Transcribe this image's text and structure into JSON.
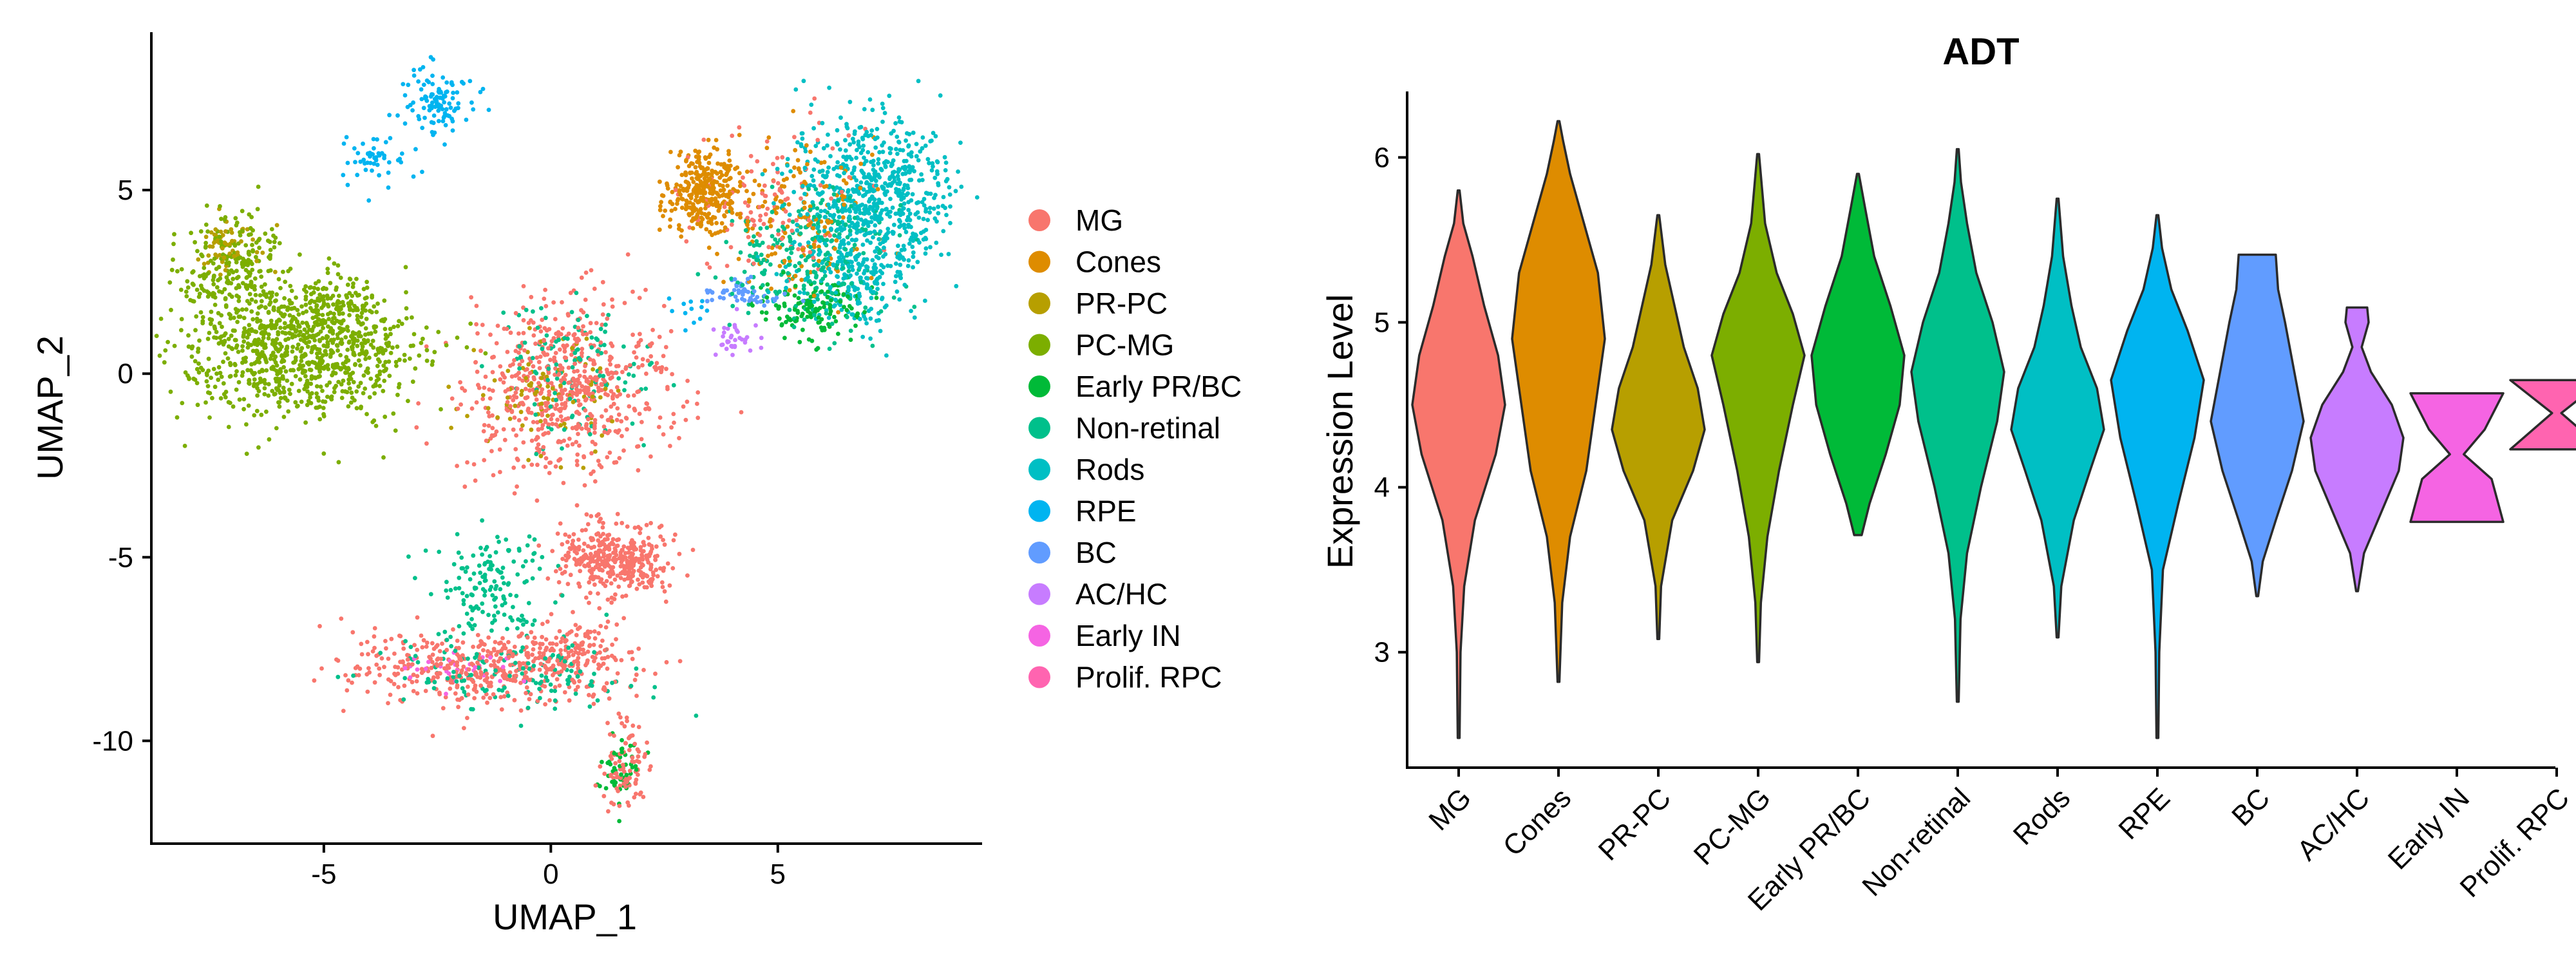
{
  "chart_data": [
    {
      "type": "scatter",
      "title": "",
      "xlabel": "UMAP_1",
      "ylabel": "UMAP_2",
      "xlim": [
        -8.8,
        9.5
      ],
      "ylim": [
        -12.8,
        9.3
      ],
      "xticks": [
        -5,
        0,
        5
      ],
      "yticks": [
        5,
        0,
        -5,
        -10
      ],
      "tick_labels_x": [
        "-5",
        "0",
        "5"
      ],
      "tick_labels_y": [
        "5",
        "0",
        "-5",
        "-10"
      ],
      "grid": false,
      "legend": "right",
      "series": [
        {
          "name": "MG",
          "color": "#F8766D"
        },
        {
          "name": "Cones",
          "color": "#DE8C00"
        },
        {
          "name": "PR-PC",
          "color": "#B79F00"
        },
        {
          "name": "PC-MG",
          "color": "#7CAE00"
        },
        {
          "name": "Early PR/BC",
          "color": "#00BA38"
        },
        {
          "name": "Non-retinal",
          "color": "#00C08B"
        },
        {
          "name": "Rods",
          "color": "#00BFC4"
        },
        {
          "name": "RPE",
          "color": "#00B4F0"
        },
        {
          "name": "BC",
          "color": "#619CFF"
        },
        {
          "name": "AC/HC",
          "color": "#C77CFF"
        },
        {
          "name": "Early IN",
          "color": "#F564E3"
        },
        {
          "name": "Prolif. RPC",
          "color": "#FF64B0"
        }
      ],
      "clusters": [
        {
          "series": "RPE",
          "cx": -2.5,
          "cy": 7.5,
          "sx": 0.4,
          "sy": 0.5,
          "n": 110
        },
        {
          "series": "RPE",
          "cx": -3.8,
          "cy": 5.8,
          "sx": 0.35,
          "sy": 0.35,
          "n": 50
        },
        {
          "series": "PC-MG",
          "cx": -5.6,
          "cy": 0.6,
          "sx": 1.3,
          "sy": 0.9,
          "n": 900
        },
        {
          "series": "PC-MG",
          "cx": -7.0,
          "cy": 2.9,
          "sx": 0.6,
          "sy": 0.7,
          "n": 220
        },
        {
          "series": "PR-PC",
          "cx": -7.1,
          "cy": 3.6,
          "sx": 0.4,
          "sy": 0.4,
          "n": 60
        },
        {
          "series": "PC-MG",
          "cx": -4.8,
          "cy": 1.8,
          "sx": 0.5,
          "sy": 0.4,
          "n": 120
        },
        {
          "series": "MG",
          "cx": 0.3,
          "cy": -0.4,
          "sx": 1.1,
          "sy": 1.1,
          "n": 650
        },
        {
          "series": "Non-retinal",
          "cx": 0.6,
          "cy": 0.2,
          "sx": 0.9,
          "sy": 0.9,
          "n": 120
        },
        {
          "series": "PR-PC",
          "cx": 0.0,
          "cy": -0.6,
          "sx": 0.9,
          "sy": 0.8,
          "n": 90
        },
        {
          "series": "MG",
          "cx": 1.2,
          "cy": -5.0,
          "sx": 0.6,
          "sy": 0.5,
          "n": 260
        },
        {
          "series": "MG",
          "cx": 1.9,
          "cy": -5.2,
          "sx": 0.4,
          "sy": 0.4,
          "n": 120
        },
        {
          "series": "Non-retinal",
          "cx": -1.3,
          "cy": -5.8,
          "sx": 0.6,
          "sy": 0.7,
          "n": 150
        },
        {
          "series": "MG",
          "cx": -1.5,
          "cy": -8.0,
          "sx": 1.5,
          "sy": 0.5,
          "n": 450
        },
        {
          "series": "Non-retinal",
          "cx": -1.0,
          "cy": -8.1,
          "sx": 1.4,
          "sy": 0.5,
          "n": 140
        },
        {
          "series": "Early IN",
          "cx": -2.0,
          "cy": -8.1,
          "sx": 0.7,
          "sy": 0.3,
          "n": 30
        },
        {
          "series": "MG",
          "cx": 0.6,
          "cy": -7.6,
          "sx": 0.5,
          "sy": 0.4,
          "n": 100
        },
        {
          "series": "MG",
          "cx": 1.6,
          "cy": -10.7,
          "sx": 0.25,
          "sy": 0.6,
          "n": 90
        },
        {
          "series": "Early PR/BC",
          "cx": 1.5,
          "cy": -10.8,
          "sx": 0.2,
          "sy": 0.5,
          "n": 50
        },
        {
          "series": "Rods",
          "cx": 7.1,
          "cy": 4.8,
          "sx": 0.9,
          "sy": 1.1,
          "n": 650
        },
        {
          "series": "Rods",
          "cx": 6.6,
          "cy": 2.6,
          "sx": 0.6,
          "sy": 0.7,
          "n": 200
        },
        {
          "series": "Cones",
          "cx": 3.4,
          "cy": 5.0,
          "sx": 0.45,
          "sy": 0.6,
          "n": 330
        },
        {
          "series": "Cones",
          "cx": 5.6,
          "cy": 4.2,
          "sx": 0.8,
          "sy": 1.0,
          "n": 140
        },
        {
          "series": "Non-retinal",
          "cx": 5.8,
          "cy": 3.2,
          "sx": 0.9,
          "sy": 0.9,
          "n": 260
        },
        {
          "series": "Early PR/BC",
          "cx": 5.8,
          "cy": 1.8,
          "sx": 0.5,
          "sy": 0.4,
          "n": 130
        },
        {
          "series": "MG",
          "cx": 4.9,
          "cy": 4.6,
          "sx": 0.9,
          "sy": 1.0,
          "n": 110
        },
        {
          "series": "BC",
          "cx": 4.3,
          "cy": 2.2,
          "sx": 0.45,
          "sy": 0.2,
          "n": 60
        },
        {
          "series": "AC/HC",
          "cx": 4.0,
          "cy": 1.0,
          "sx": 0.3,
          "sy": 0.25,
          "n": 35
        },
        {
          "series": "RPE",
          "cx": 3.2,
          "cy": 1.7,
          "sx": 0.3,
          "sy": 0.2,
          "n": 12
        }
      ]
    },
    {
      "type": "violin",
      "title": "ADT",
      "xlabel": "",
      "ylabel": "Expression Level",
      "ylim": [
        2.3,
        6.4
      ],
      "yticks": [
        3,
        4,
        5,
        6
      ],
      "tick_labels_y": [
        "3",
        "4",
        "5",
        "6"
      ],
      "grid": false,
      "categories": [
        "MG",
        "Cones",
        "PR-PC",
        "PC-MG",
        "Early PR/BC",
        "Non-retinal",
        "Rods",
        "RPE",
        "BC",
        "AC/HC",
        "Early IN",
        "Prolif. RPC"
      ],
      "colors": [
        "#F8766D",
        "#DE8C00",
        "#B79F00",
        "#7CAE00",
        "#00BA38",
        "#00C08B",
        "#00BFC4",
        "#00B4F0",
        "#619CFF",
        "#C77CFF",
        "#F564E3",
        "#FF64B0"
      ],
      "profiles": [
        [
          [
            2.48,
            0.02
          ],
          [
            3.0,
            0.04
          ],
          [
            3.4,
            0.12
          ],
          [
            3.8,
            0.35
          ],
          [
            4.2,
            0.8
          ],
          [
            4.5,
            1.0
          ],
          [
            4.8,
            0.85
          ],
          [
            5.1,
            0.55
          ],
          [
            5.4,
            0.3
          ],
          [
            5.6,
            0.1
          ],
          [
            5.8,
            0.02
          ]
        ],
        [
          [
            2.82,
            0.02
          ],
          [
            3.3,
            0.08
          ],
          [
            3.7,
            0.25
          ],
          [
            4.1,
            0.6
          ],
          [
            4.5,
            0.8
          ],
          [
            4.9,
            1.0
          ],
          [
            5.3,
            0.85
          ],
          [
            5.6,
            0.55
          ],
          [
            5.9,
            0.25
          ],
          [
            6.1,
            0.1
          ],
          [
            6.22,
            0.02
          ]
        ],
        [
          [
            3.08,
            0.02
          ],
          [
            3.4,
            0.06
          ],
          [
            3.8,
            0.3
          ],
          [
            4.1,
            0.75
          ],
          [
            4.35,
            1.0
          ],
          [
            4.6,
            0.85
          ],
          [
            4.85,
            0.55
          ],
          [
            5.1,
            0.35
          ],
          [
            5.35,
            0.15
          ],
          [
            5.65,
            0.02
          ]
        ],
        [
          [
            2.94,
            0.02
          ],
          [
            3.3,
            0.06
          ],
          [
            3.7,
            0.2
          ],
          [
            4.1,
            0.45
          ],
          [
            4.5,
            0.75
          ],
          [
            4.8,
            1.0
          ],
          [
            5.05,
            0.75
          ],
          [
            5.3,
            0.4
          ],
          [
            5.6,
            0.15
          ],
          [
            6.02,
            0.02
          ]
        ],
        [
          [
            3.71,
            0.08
          ],
          [
            3.9,
            0.25
          ],
          [
            4.2,
            0.6
          ],
          [
            4.5,
            0.9
          ],
          [
            4.8,
            1.0
          ],
          [
            5.1,
            0.7
          ],
          [
            5.4,
            0.35
          ],
          [
            5.7,
            0.15
          ],
          [
            5.9,
            0.02
          ]
        ],
        [
          [
            2.7,
            0.02
          ],
          [
            3.2,
            0.06
          ],
          [
            3.6,
            0.2
          ],
          [
            4.0,
            0.5
          ],
          [
            4.4,
            0.85
          ],
          [
            4.7,
            1.0
          ],
          [
            5.0,
            0.75
          ],
          [
            5.3,
            0.4
          ],
          [
            5.6,
            0.2
          ],
          [
            5.85,
            0.07
          ],
          [
            6.05,
            0.02
          ]
        ],
        [
          [
            3.09,
            0.02
          ],
          [
            3.4,
            0.08
          ],
          [
            3.8,
            0.35
          ],
          [
            4.1,
            0.7
          ],
          [
            4.35,
            1.0
          ],
          [
            4.6,
            0.85
          ],
          [
            4.85,
            0.5
          ],
          [
            5.1,
            0.3
          ],
          [
            5.4,
            0.12
          ],
          [
            5.75,
            0.02
          ]
        ],
        [
          [
            2.48,
            0.02
          ],
          [
            3.0,
            0.04
          ],
          [
            3.5,
            0.12
          ],
          [
            3.9,
            0.45
          ],
          [
            4.3,
            0.8
          ],
          [
            4.65,
            1.0
          ],
          [
            4.95,
            0.65
          ],
          [
            5.2,
            0.3
          ],
          [
            5.45,
            0.1
          ],
          [
            5.65,
            0.02
          ]
        ],
        [
          [
            3.34,
            0.02
          ],
          [
            3.55,
            0.12
          ],
          [
            3.8,
            0.4
          ],
          [
            4.1,
            0.75
          ],
          [
            4.4,
            1.0
          ],
          [
            4.7,
            0.8
          ],
          [
            5.0,
            0.6
          ],
          [
            5.2,
            0.45
          ],
          [
            5.41,
            0.4
          ]
        ],
        [
          [
            3.37,
            0.02
          ],
          [
            3.6,
            0.15
          ],
          [
            3.9,
            0.6
          ],
          [
            4.1,
            0.9
          ],
          [
            4.3,
            1.0
          ],
          [
            4.5,
            0.75
          ],
          [
            4.7,
            0.3
          ],
          [
            4.85,
            0.1
          ],
          [
            5.0,
            0.25
          ],
          [
            5.09,
            0.22
          ]
        ],
        [
          [
            3.79,
            1.0
          ],
          [
            4.05,
            0.75
          ],
          [
            4.2,
            0.15
          ],
          [
            4.35,
            0.6
          ],
          [
            4.57,
            1.0
          ]
        ],
        [
          [
            4.23,
            1.0
          ],
          [
            4.45,
            0.1
          ],
          [
            4.65,
            1.0
          ]
        ]
      ]
    }
  ]
}
